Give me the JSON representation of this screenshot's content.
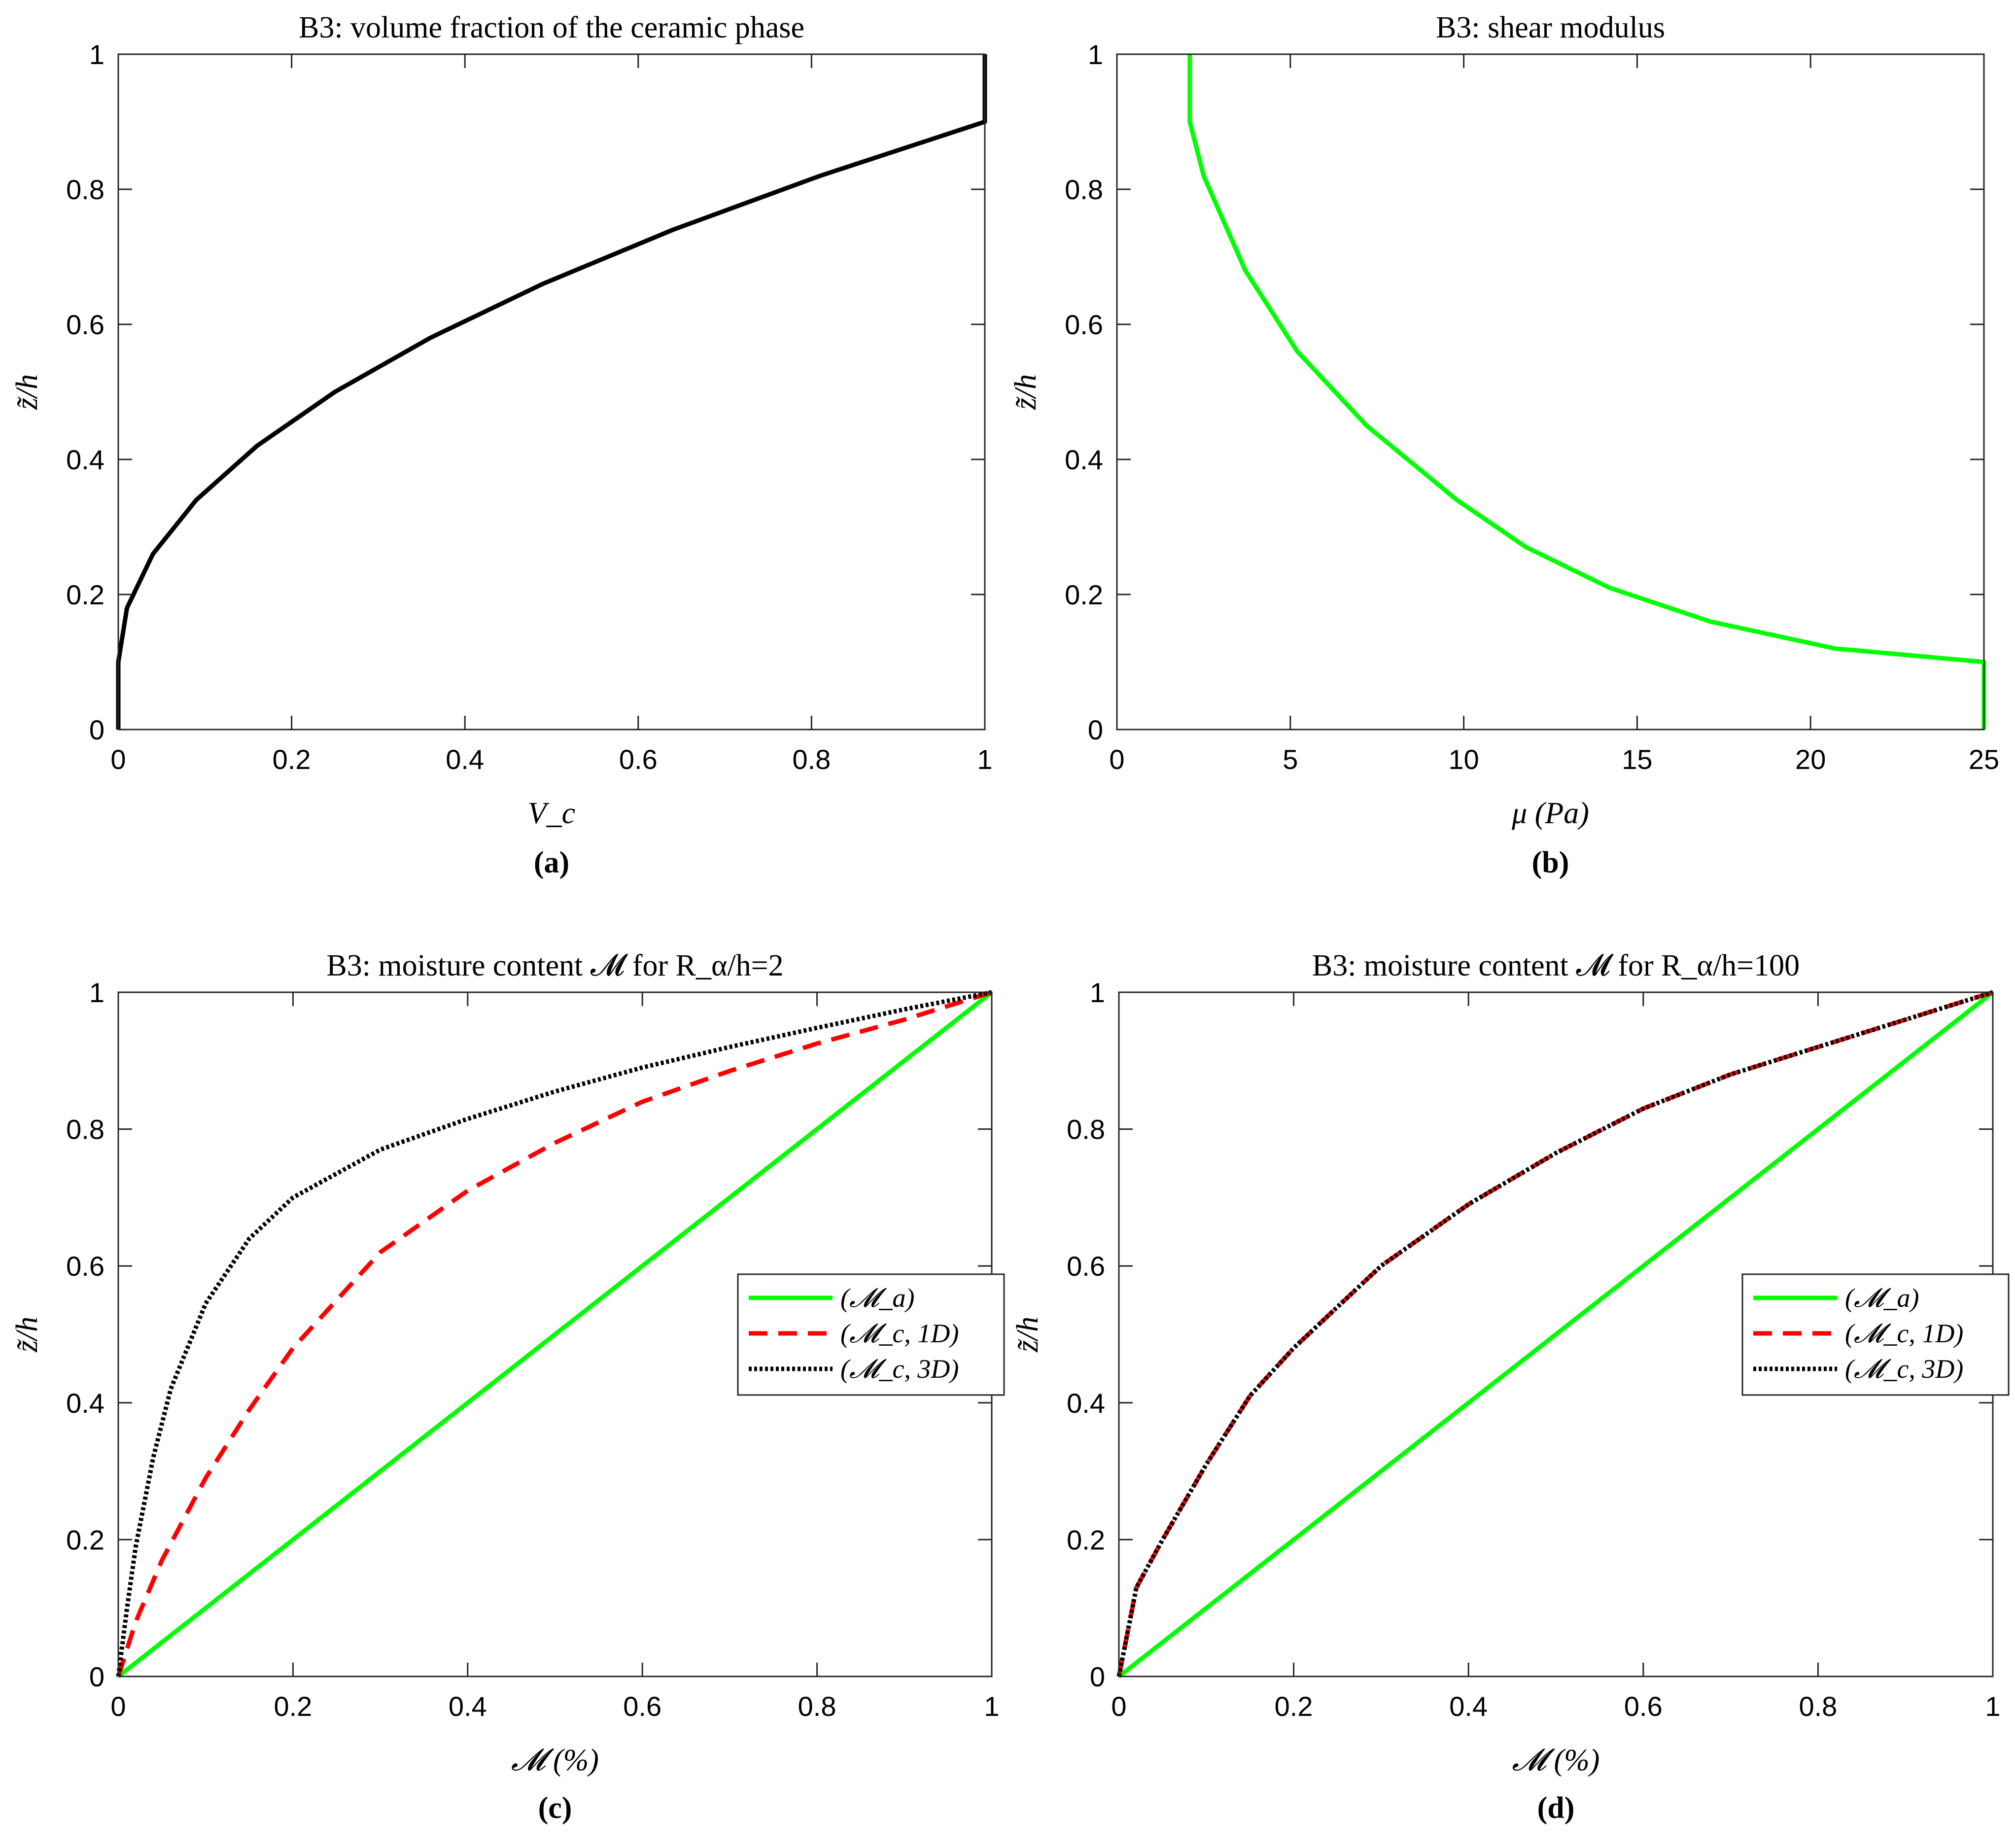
{
  "chart_data": [
    {
      "type": "line",
      "caption": "(a)",
      "title": "B3: volume fraction of the ceramic phase",
      "xlabel": "V_c",
      "ylabel": "z̃/h",
      "xlim": [
        0,
        1
      ],
      "ylim": [
        0,
        1
      ],
      "xticks": [
        0,
        0.2,
        0.4,
        0.6,
        0.8,
        1
      ],
      "xtick_labels": [
        "0",
        "0.2",
        "0.4",
        "0.6",
        "0.8",
        "1"
      ],
      "yticks": [
        0,
        0.2,
        0.4,
        0.6,
        0.8,
        1
      ],
      "ytick_labels": [
        "0",
        "0.2",
        "0.4",
        "0.6",
        "0.8",
        "1"
      ],
      "series": [
        {
          "name": "V_c",
          "color": "#000000",
          "dash": "solid",
          "x": [
            0,
            0,
            0.01,
            0.04,
            0.09,
            0.16,
            0.25,
            0.36,
            0.49,
            0.64,
            0.81,
            1.0,
            1.0
          ],
          "y": [
            0,
            0.1,
            0.18,
            0.26,
            0.34,
            0.42,
            0.5,
            0.58,
            0.66,
            0.74,
            0.82,
            0.9,
            1.0
          ]
        }
      ]
    },
    {
      "type": "line",
      "caption": "(b)",
      "title": "B3: shear modulus",
      "xlabel": "μ (Pa)",
      "ylabel": "z̃/h",
      "xlim": [
        0,
        25
      ],
      "ylim": [
        0,
        1
      ],
      "xticks": [
        0,
        5,
        10,
        15,
        20,
        25
      ],
      "xtick_labels": [
        "0",
        "5",
        "10",
        "15",
        "20",
        "25"
      ],
      "yticks": [
        0,
        0.2,
        0.4,
        0.6,
        0.8,
        1
      ],
      "ytick_labels": [
        "0",
        "0.2",
        "0.4",
        "0.6",
        "0.8",
        "1"
      ],
      "series": [
        {
          "name": "μ",
          "color": "#00ff00",
          "dash": "solid",
          "x": [
            25.0,
            25.0,
            20.7,
            17.1,
            14.2,
            11.8,
            9.8,
            7.2,
            5.2,
            3.7,
            2.5,
            2.1,
            2.1
          ],
          "y": [
            0,
            0.1,
            0.12,
            0.16,
            0.21,
            0.27,
            0.34,
            0.45,
            0.56,
            0.68,
            0.82,
            0.9,
            1.0
          ]
        }
      ]
    },
    {
      "type": "line",
      "caption": "(c)",
      "title": "B3: moisture content 𝓜 for R_α/h=2",
      "xlabel": "𝓜 (%)",
      "ylabel": "z̃/h",
      "xlim": [
        0,
        1
      ],
      "ylim": [
        0,
        1
      ],
      "xticks": [
        0,
        0.2,
        0.4,
        0.6,
        0.8,
        1
      ],
      "xtick_labels": [
        "0",
        "0.2",
        "0.4",
        "0.6",
        "0.8",
        "1"
      ],
      "yticks": [
        0,
        0.2,
        0.4,
        0.6,
        0.8,
        1
      ],
      "ytick_labels": [
        "0",
        "0.2",
        "0.4",
        "0.6",
        "0.8",
        "1"
      ],
      "legend": {
        "position": "right-middle",
        "entries": [
          "(𝓜_a)",
          "(𝓜_c, 1D)",
          "(𝓜_c, 3D)"
        ]
      },
      "series": [
        {
          "name": "(𝓜_a)",
          "color": "#00ff00",
          "dash": "solid",
          "x": [
            0,
            1
          ],
          "y": [
            0,
            1
          ]
        },
        {
          "name": "(𝓜_c, 1D)",
          "color": "#ff0000",
          "dash": "dashed",
          "x": [
            0,
            0.02,
            0.05,
            0.1,
            0.15,
            0.2,
            0.3,
            0.4,
            0.5,
            0.6,
            0.7,
            0.8,
            0.9,
            1.0
          ],
          "y": [
            0,
            0.08,
            0.17,
            0.29,
            0.39,
            0.48,
            0.62,
            0.71,
            0.78,
            0.84,
            0.885,
            0.925,
            0.96,
            1.0
          ]
        },
        {
          "name": "(𝓜_c, 3D)",
          "color": "#000000",
          "dash": "dotted",
          "x": [
            0,
            0.01,
            0.02,
            0.04,
            0.06,
            0.1,
            0.15,
            0.2,
            0.3,
            0.4,
            0.5,
            0.6,
            0.7,
            0.8,
            0.9,
            1.0
          ],
          "y": [
            0,
            0.1,
            0.19,
            0.32,
            0.42,
            0.545,
            0.64,
            0.7,
            0.77,
            0.815,
            0.855,
            0.89,
            0.92,
            0.948,
            0.975,
            1.0
          ]
        }
      ]
    },
    {
      "type": "line",
      "caption": "(d)",
      "title": "B3: moisture content 𝓜 for R_α/h=100",
      "xlabel": "𝓜 (%)",
      "ylabel": "z̃/h",
      "xlim": [
        0,
        1
      ],
      "ylim": [
        0,
        1
      ],
      "xticks": [
        0,
        0.2,
        0.4,
        0.6,
        0.8,
        1
      ],
      "xtick_labels": [
        "0",
        "0.2",
        "0.4",
        "0.6",
        "0.8",
        "1"
      ],
      "yticks": [
        0,
        0.2,
        0.4,
        0.6,
        0.8,
        1
      ],
      "ytick_labels": [
        "0",
        "0.2",
        "0.4",
        "0.6",
        "0.8",
        "1"
      ],
      "legend": {
        "position": "right-middle",
        "entries": [
          "(𝓜_a)",
          "(𝓜_c, 1D)",
          "(𝓜_c, 3D)"
        ]
      },
      "series": [
        {
          "name": "(𝓜_a)",
          "color": "#00ff00",
          "dash": "solid",
          "x": [
            0,
            1
          ],
          "y": [
            0,
            1
          ]
        },
        {
          "name": "(𝓜_c, 1D)",
          "color": "#ff0000",
          "dash": "dashed",
          "x": [
            0,
            0.02,
            0.05,
            0.1,
            0.15,
            0.2,
            0.3,
            0.4,
            0.5,
            0.6,
            0.7,
            0.8,
            0.9,
            1.0
          ],
          "y": [
            0,
            0.13,
            0.2,
            0.31,
            0.41,
            0.48,
            0.6,
            0.69,
            0.765,
            0.83,
            0.88,
            0.92,
            0.96,
            1.0
          ]
        },
        {
          "name": "(𝓜_c, 3D)",
          "color": "#000000",
          "dash": "dotted",
          "x": [
            0,
            0.02,
            0.05,
            0.1,
            0.15,
            0.2,
            0.3,
            0.4,
            0.5,
            0.6,
            0.7,
            0.8,
            0.9,
            1.0
          ],
          "y": [
            0,
            0.13,
            0.2,
            0.31,
            0.41,
            0.48,
            0.6,
            0.69,
            0.765,
            0.83,
            0.88,
            0.92,
            0.96,
            1.0
          ]
        }
      ]
    }
  ]
}
